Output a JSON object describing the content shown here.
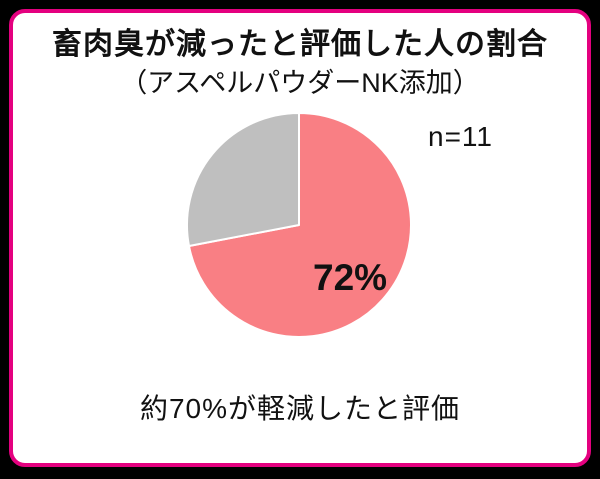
{
  "colors": {
    "card_border": "#e4007f",
    "card_background": "#ffffff",
    "outer_background": "#000000",
    "slice_main": "#f97f84",
    "slice_other": "#bfbfbf",
    "text": "#111111"
  },
  "chart_data": {
    "type": "pie",
    "title": "畜肉臭が減ったと評価した人の割合",
    "subtitle": "（アスペルパウダーNK添加）",
    "n_label": "n=11",
    "percent_label": "72%",
    "caption": "約70%が軽減したと評価",
    "segments": [
      {
        "value": 72,
        "color": "#f97f84"
      },
      {
        "value": 28,
        "color": "#bfbfbf"
      }
    ],
    "start_angle_deg": -90,
    "direction": "clockwise",
    "legend": "none"
  }
}
